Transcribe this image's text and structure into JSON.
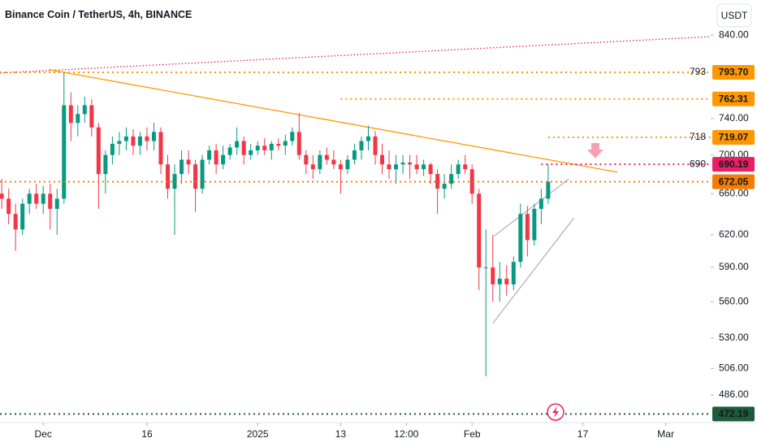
{
  "chart_data": {
    "type": "candlestick",
    "title": "Binance Coin / TetherUS, 4h, BINANCE",
    "currency": "USDT",
    "log_scale": true,
    "up_color": "#089981",
    "down_color": "#f23645",
    "xlim": [
      "2024-11-24T18:00",
      "2025-03-07T12:00"
    ],
    "ylim": [
      466,
      886
    ],
    "xticks": [
      {
        "value": "2024-12-01",
        "label": "Dec"
      },
      {
        "value": "2024-12-16",
        "label": "16"
      },
      {
        "value": "2025-01-01",
        "label": "2025"
      },
      {
        "value": "2025-01-13",
        "label": "13"
      },
      {
        "value": "2025-01-22T12:00",
        "label": "12:00"
      },
      {
        "value": "2025-02-01",
        "label": "Feb"
      },
      {
        "value": "2025-02-17",
        "label": "17"
      },
      {
        "value": "2025-03-01",
        "label": "Mar"
      }
    ],
    "yticks": [
      {
        "value": 840,
        "label": "840.00"
      },
      {
        "value": 740,
        "label": "740.00"
      },
      {
        "value": 700,
        "label": "700.00"
      },
      {
        "value": 660,
        "label": "660.00"
      },
      {
        "value": 620,
        "label": "620.00"
      },
      {
        "value": 590,
        "label": "590.00"
      },
      {
        "value": 560,
        "label": "560.00"
      },
      {
        "value": 530,
        "label": "530.00"
      },
      {
        "value": 506,
        "label": "506.00"
      },
      {
        "value": 486,
        "label": "486.00"
      }
    ],
    "x": [
      "2024-11-25",
      "2024-11-26",
      "2024-11-27",
      "2024-11-28",
      "2024-11-29",
      "2024-11-30",
      "2024-12-01",
      "2024-12-02",
      "2024-12-03",
      "2024-12-04",
      "2024-12-05",
      "2024-12-06",
      "2024-12-07",
      "2024-12-08",
      "2024-12-09",
      "2024-12-10",
      "2024-12-11",
      "2024-12-12",
      "2024-12-13",
      "2024-12-14",
      "2024-12-15",
      "2024-12-16",
      "2024-12-17",
      "2024-12-18",
      "2024-12-19",
      "2024-12-20",
      "2024-12-21",
      "2024-12-22",
      "2024-12-23",
      "2024-12-24",
      "2024-12-25",
      "2024-12-26",
      "2024-12-27",
      "2024-12-28",
      "2024-12-29",
      "2024-12-30",
      "2024-12-31",
      "2025-01-01",
      "2025-01-02",
      "2025-01-03",
      "2025-01-04",
      "2025-01-05",
      "2025-01-06",
      "2025-01-07",
      "2025-01-08",
      "2025-01-09",
      "2025-01-10",
      "2025-01-11",
      "2025-01-12",
      "2025-01-13",
      "2025-01-14",
      "2025-01-15",
      "2025-01-16",
      "2025-01-17",
      "2025-01-18",
      "2025-01-19",
      "2025-01-20",
      "2025-01-21",
      "2025-01-22",
      "2025-01-23",
      "2025-01-24",
      "2025-01-25",
      "2025-01-26",
      "2025-01-27",
      "2025-01-28",
      "2025-01-29",
      "2025-01-30",
      "2025-01-31",
      "2025-02-01",
      "2025-02-02",
      "2025-02-03",
      "2025-02-04",
      "2025-02-05",
      "2025-02-06",
      "2025-02-07",
      "2025-02-08",
      "2025-02-09",
      "2025-02-10",
      "2025-02-11",
      "2025-02-12"
    ],
    "open": [
      660,
      655,
      640,
      625,
      650,
      660,
      650,
      660,
      645,
      655,
      755,
      735,
      745,
      755,
      730,
      680,
      700,
      712,
      715,
      720,
      710,
      720,
      715,
      725,
      690,
      665,
      680,
      695,
      690,
      665,
      695,
      705,
      690,
      700,
      708,
      715,
      700,
      705,
      710,
      705,
      712,
      710,
      715,
      725,
      700,
      690,
      685,
      700,
      695,
      690,
      685,
      695,
      705,
      715,
      720,
      700,
      690,
      685,
      690,
      692,
      690,
      685,
      690,
      680,
      665,
      670,
      680,
      690,
      685,
      660,
      590,
      590,
      575,
      580,
      575,
      595,
      640,
      615,
      645,
      655
    ],
    "high": [
      675,
      665,
      650,
      655,
      665,
      670,
      668,
      670,
      665,
      793,
      770,
      755,
      765,
      762,
      735,
      705,
      720,
      725,
      730,
      728,
      725,
      730,
      735,
      730,
      700,
      690,
      705,
      705,
      695,
      700,
      710,
      712,
      710,
      712,
      730,
      720,
      712,
      715,
      718,
      715,
      718,
      722,
      730,
      746,
      705,
      700,
      705,
      708,
      705,
      695,
      700,
      712,
      720,
      732,
      726,
      712,
      705,
      700,
      700,
      700,
      700,
      695,
      692,
      685,
      680,
      690,
      695,
      700,
      690,
      665,
      625,
      620,
      595,
      592,
      600,
      650,
      648,
      650,
      665,
      690
    ],
    "low": [
      645,
      630,
      605,
      620,
      640,
      645,
      640,
      625,
      620,
      650,
      715,
      720,
      735,
      720,
      645,
      660,
      690,
      700,
      705,
      700,
      700,
      705,
      705,
      680,
      655,
      620,
      670,
      680,
      642,
      660,
      690,
      680,
      685,
      695,
      700,
      690,
      695,
      700,
      700,
      695,
      705,
      700,
      710,
      695,
      680,
      675,
      680,
      690,
      685,
      660,
      680,
      690,
      695,
      705,
      690,
      680,
      675,
      670,
      680,
      675,
      680,
      678,
      670,
      640,
      655,
      665,
      675,
      680,
      650,
      570,
      500,
      560,
      560,
      565,
      570,
      590,
      600,
      610,
      630,
      650
    ],
    "close": [
      655,
      640,
      625,
      650,
      660,
      650,
      660,
      645,
      655,
      755,
      735,
      745,
      755,
      730,
      680,
      700,
      712,
      715,
      720,
      710,
      720,
      715,
      725,
      690,
      665,
      680,
      695,
      690,
      665,
      695,
      705,
      690,
      700,
      708,
      715,
      700,
      705,
      710,
      705,
      712,
      710,
      715,
      725,
      700,
      690,
      685,
      700,
      695,
      690,
      685,
      695,
      705,
      715,
      720,
      700,
      690,
      685,
      690,
      692,
      690,
      685,
      690,
      680,
      665,
      670,
      680,
      690,
      685,
      660,
      590,
      590,
      575,
      580,
      575,
      595,
      640,
      615,
      645,
      655,
      672.05
    ],
    "levels": [
      {
        "price": {
          "value": 793.7,
          "label": "793.70"
        },
        "note": 793,
        "color": "#ff9800",
        "tag_text_color": "#131722"
      },
      {
        "price": 762.31,
        "from": "2025-01-13",
        "color": "#ff9800",
        "tag_text_color": "#131722"
      },
      {
        "price": 719.07,
        "note": 718,
        "from": "2025-02-12",
        "color": "#ff9800",
        "tag_text_color": "#131722"
      },
      {
        "price": 690.19,
        "note": 690,
        "from": "2025-02-11",
        "color": "#e91e63",
        "tag_text_color": "#ffffff"
      },
      {
        "price": 672.05,
        "color": "#f57c00",
        "tag_text_color": "#ffffff"
      },
      {
        "price": 472.19,
        "color": "#1e5b3a",
        "tag_text_color": "#ffffff"
      }
    ],
    "trendlines": [
      {
        "from": "2024-11-24T18:00",
        "from_price": 793,
        "to": "2025-03-07T12:00",
        "to_price": 838,
        "color": "#e91e63",
        "dashed": true
      },
      {
        "from": "2024-12-01T20:00",
        "from_price": 797,
        "to": "2025-02-22",
        "to_price": 682,
        "color": "#ff9800",
        "dashed": false
      },
      {
        "from": "2025-02-04T05:00",
        "from_price": 619,
        "to": "2025-02-15",
        "to_price": 675,
        "color": "#b2b5be",
        "dashed": false
      },
      {
        "from": "2025-02-04",
        "from_price": 542,
        "to": "2025-02-15T17:00",
        "to_price": 636,
        "color": "#b2b5be",
        "dashed": false
      }
    ]
  }
}
